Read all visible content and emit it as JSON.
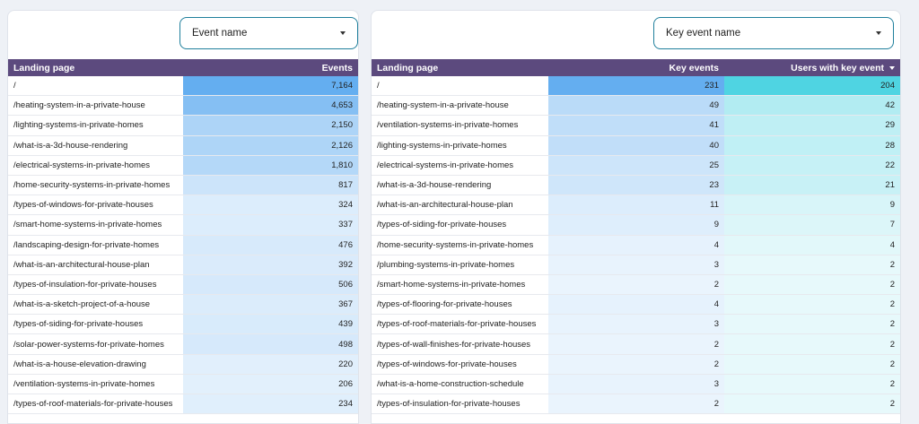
{
  "left_panel": {
    "filter_label": "Event name",
    "columns": [
      "Landing page",
      "Events"
    ],
    "max_events": 7164,
    "rows": [
      {
        "page": "/",
        "events": "7,164",
        "v": 7164
      },
      {
        "page": "/heating-system-in-a-private-house",
        "events": "4,653",
        "v": 4653
      },
      {
        "page": "/lighting-systems-in-private-homes",
        "events": "2,150",
        "v": 2150
      },
      {
        "page": "/what-is-a-3d-house-rendering",
        "events": "2,126",
        "v": 2126
      },
      {
        "page": "/electrical-systems-in-private-homes",
        "events": "1,810",
        "v": 1810
      },
      {
        "page": "/home-security-systems-in-private-homes",
        "events": "817",
        "v": 817
      },
      {
        "page": "/types-of-windows-for-private-houses",
        "events": "324",
        "v": 324
      },
      {
        "page": "/smart-home-systems-in-private-homes",
        "events": "337",
        "v": 337
      },
      {
        "page": "/landscaping-design-for-private-homes",
        "events": "476",
        "v": 476
      },
      {
        "page": "/what-is-an-architectural-house-plan",
        "events": "392",
        "v": 392
      },
      {
        "page": "/types-of-insulation-for-private-houses",
        "events": "506",
        "v": 506
      },
      {
        "page": "/what-is-a-sketch-project-of-a-house",
        "events": "367",
        "v": 367
      },
      {
        "page": "/types-of-siding-for-private-houses",
        "events": "439",
        "v": 439
      },
      {
        "page": "/solar-power-systems-for-private-homes",
        "events": "498",
        "v": 498
      },
      {
        "page": "/what-is-a-house-elevation-drawing",
        "events": "220",
        "v": 220
      },
      {
        "page": "/ventilation-systems-in-private-homes",
        "events": "206",
        "v": 206
      },
      {
        "page": "/types-of-roof-materials-for-private-houses",
        "events": "234",
        "v": 234
      },
      {
        "page": "",
        "events": "",
        "v": 0
      }
    ]
  },
  "right_panel": {
    "filter_label": "Key event name",
    "columns": [
      "Landing page",
      "Key events",
      "Users with key event"
    ],
    "max_key": 231,
    "max_users": 204,
    "rows": [
      {
        "page": "/",
        "key": "231",
        "users": "204",
        "k": 231,
        "u": 204
      },
      {
        "page": "/heating-system-in-a-private-house",
        "key": "49",
        "users": "42",
        "k": 49,
        "u": 42
      },
      {
        "page": "/ventilation-systems-in-private-homes",
        "key": "41",
        "users": "29",
        "k": 41,
        "u": 29
      },
      {
        "page": "/lighting-systems-in-private-homes",
        "key": "40",
        "users": "28",
        "k": 40,
        "u": 28
      },
      {
        "page": "/electrical-systems-in-private-homes",
        "key": "25",
        "users": "22",
        "k": 25,
        "u": 22
      },
      {
        "page": "/what-is-a-3d-house-rendering",
        "key": "23",
        "users": "21",
        "k": 23,
        "u": 21
      },
      {
        "page": "/what-is-an-architectural-house-plan",
        "key": "11",
        "users": "9",
        "k": 11,
        "u": 9
      },
      {
        "page": "/types-of-siding-for-private-houses",
        "key": "9",
        "users": "7",
        "k": 9,
        "u": 7
      },
      {
        "page": "/home-security-systems-in-private-homes",
        "key": "4",
        "users": "4",
        "k": 4,
        "u": 4
      },
      {
        "page": "/plumbing-systems-in-private-homes",
        "key": "3",
        "users": "2",
        "k": 3,
        "u": 2
      },
      {
        "page": "/smart-home-systems-in-private-homes",
        "key": "2",
        "users": "2",
        "k": 2,
        "u": 2
      },
      {
        "page": "/types-of-flooring-for-private-houses",
        "key": "4",
        "users": "2",
        "k": 4,
        "u": 2
      },
      {
        "page": "/types-of-roof-materials-for-private-houses",
        "key": "3",
        "users": "2",
        "k": 3,
        "u": 2
      },
      {
        "page": "/types-of-wall-finishes-for-private-houses",
        "key": "2",
        "users": "2",
        "k": 2,
        "u": 2
      },
      {
        "page": "/types-of-windows-for-private-houses",
        "key": "2",
        "users": "2",
        "k": 2,
        "u": 2
      },
      {
        "page": "/what-is-a-home-construction-schedule",
        "key": "3",
        "users": "2",
        "k": 3,
        "u": 2
      },
      {
        "page": "/types-of-insulation-for-private-houses",
        "key": "2",
        "users": "2",
        "k": 2,
        "u": 2
      },
      {
        "page": "",
        "key": "",
        "users": "",
        "k": 0,
        "u": 0
      }
    ]
  },
  "colors": {
    "header_bg": "#5c4a7e",
    "events_heat": "#64aef0",
    "key_events_heat": "#64aef0",
    "users_heat": "#4fd4e2",
    "filter_border": "#1f7f9c"
  }
}
